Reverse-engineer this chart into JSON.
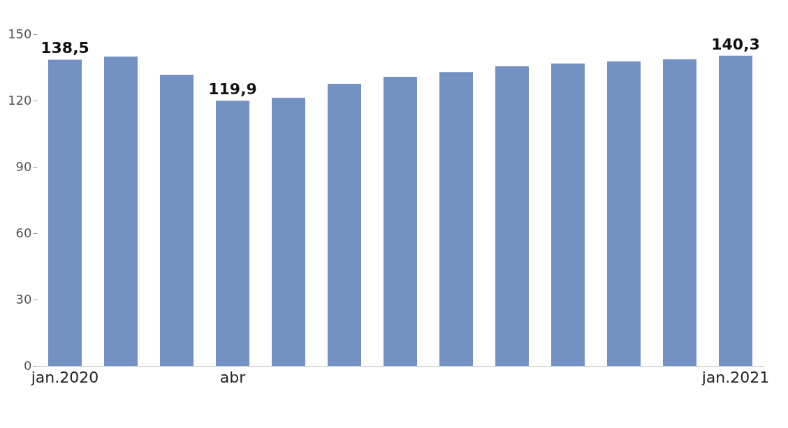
{
  "chart_data": {
    "type": "bar",
    "categories": [
      "jan.2020",
      null,
      null,
      "abr",
      null,
      null,
      null,
      null,
      null,
      null,
      null,
      null,
      "jan.2021"
    ],
    "values": [
      138.5,
      139.9,
      131.7,
      119.9,
      121.3,
      127.6,
      130.7,
      132.9,
      135.5,
      136.7,
      137.7,
      138.6,
      140.3
    ],
    "value_labels": [
      "138,5",
      null,
      null,
      "119,9",
      null,
      null,
      null,
      null,
      null,
      null,
      null,
      null,
      "140,3"
    ],
    "color": "#7391c2",
    "ylim": [
      0,
      150
    ],
    "yticks": [
      0,
      30,
      60,
      90,
      120,
      150
    ],
    "grid": false
  }
}
